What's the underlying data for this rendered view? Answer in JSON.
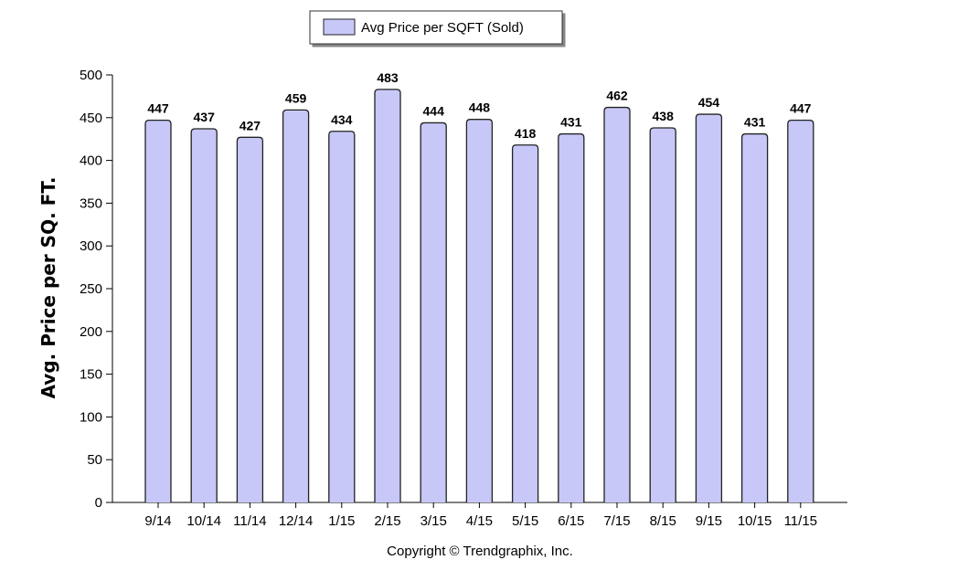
{
  "chart_data": {
    "type": "bar",
    "categories": [
      "9/14",
      "10/14",
      "11/14",
      "12/14",
      "1/15",
      "2/15",
      "3/15",
      "4/15",
      "5/15",
      "6/15",
      "7/15",
      "8/15",
      "9/15",
      "10/15",
      "11/15"
    ],
    "series": [
      {
        "name": "Avg Price per SQFT (Sold)",
        "values": [
          447,
          437,
          427,
          459,
          434,
          483,
          444,
          448,
          418,
          431,
          462,
          438,
          454,
          431,
          447
        ]
      }
    ],
    "ylabel": "Avg. Price per SQ. FT.",
    "xlabel": "",
    "ylim": [
      0,
      500
    ],
    "yticks": [
      0,
      50,
      100,
      150,
      200,
      250,
      300,
      350,
      400,
      450,
      500
    ],
    "legend_position": "top-center",
    "grid": false,
    "bar_color": "#c8c8f8",
    "bar_stroke": "#222222"
  },
  "legend": {
    "label": "Avg Price per SQFT (Sold)"
  },
  "footer": {
    "copyright": "Copyright © Trendgraphix, Inc."
  }
}
